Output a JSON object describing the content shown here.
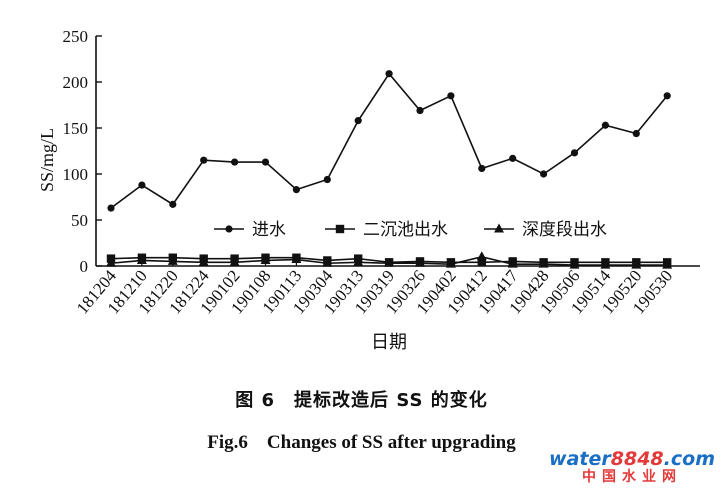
{
  "chart_data": {
    "type": "line",
    "title": "",
    "xlabel": "日期",
    "ylabel": "SS/mg/L",
    "ylim": [
      0,
      250
    ],
    "yticks": [
      "0",
      "50",
      "100",
      "150",
      "200",
      "250"
    ],
    "categories": [
      "181204",
      "181210",
      "181220",
      "181224",
      "190102",
      "190108",
      "190113",
      "190304",
      "190313",
      "190319",
      "190326",
      "190402",
      "190412",
      "190417",
      "190428",
      "190506",
      "190514",
      "190520",
      "190530"
    ],
    "legend_position": "center",
    "grid": false,
    "series": [
      {
        "name": "进水",
        "marker": "circle",
        "values": [
          63,
          88,
          67,
          115,
          113,
          113,
          83,
          94,
          158,
          209,
          169,
          185,
          106,
          117,
          100,
          123,
          153,
          144,
          185
        ]
      },
      {
        "name": "二沉池出水",
        "marker": "square",
        "values": [
          8,
          9,
          9,
          8,
          8,
          9,
          9,
          6,
          8,
          4,
          5,
          4,
          4,
          5,
          4,
          4,
          4,
          4,
          4
        ]
      },
      {
        "name": "深度段出水",
        "marker": "triangle",
        "values": [
          3,
          6,
          5,
          4,
          4,
          6,
          7,
          3,
          4,
          3,
          3,
          2,
          10,
          2,
          2,
          1,
          1,
          1,
          1
        ]
      }
    ]
  },
  "caption_cn": "图 6　提标改造后 SS 的变化",
  "caption_en": "Fig.6　Changes of SS after upgrading",
  "watermark": {
    "brand": "water",
    "number": "8848",
    "suffix": ".com",
    "cn": "中国水业网"
  }
}
